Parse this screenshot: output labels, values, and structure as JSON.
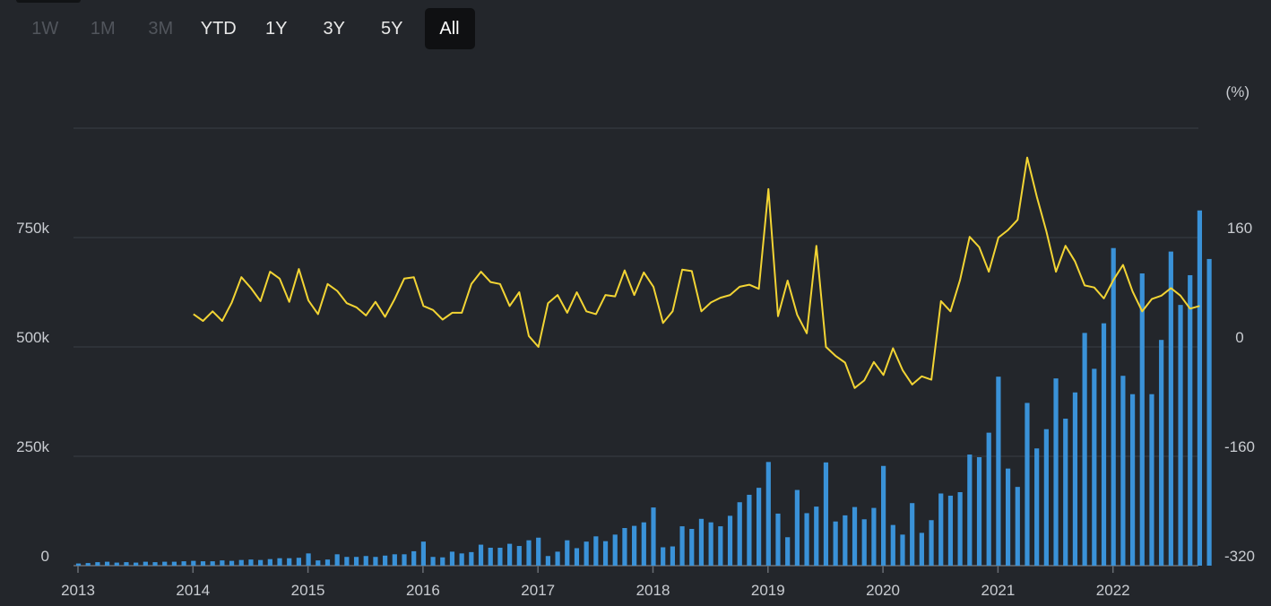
{
  "range_buttons": [
    {
      "label": "1W",
      "state": "disabled"
    },
    {
      "label": "1M",
      "state": "disabled"
    },
    {
      "label": "3M",
      "state": "disabled"
    },
    {
      "label": "YTD",
      "state": "normal"
    },
    {
      "label": "1Y",
      "state": "normal"
    },
    {
      "label": "3Y",
      "state": "normal"
    },
    {
      "label": "5Y",
      "state": "normal"
    },
    {
      "label": "All",
      "state": "active"
    }
  ],
  "chart_data": {
    "type": "bar+line",
    "title": "",
    "x_ticks": [
      "2013",
      "2014",
      "2015",
      "2016",
      "2017",
      "2018",
      "2019",
      "2020",
      "2021",
      "2022"
    ],
    "left_axis": {
      "ticks": [
        "0",
        "250k",
        "500k",
        "750k"
      ],
      "ylim": [
        0,
        1000000
      ]
    },
    "right_axis": {
      "unit_label": "(%)",
      "ticks": [
        "-320",
        "-160",
        "0",
        "160"
      ],
      "ylim": [
        -320,
        320
      ]
    },
    "colors": {
      "bars": "#3a92d8",
      "line": "#f2d434",
      "grid": "#3a3e45",
      "text": "#c9ccd1"
    },
    "start_month": "2013-01",
    "bars": [
      5000,
      6000,
      8000,
      9000,
      7000,
      8000,
      7000,
      9000,
      8000,
      9000,
      9000,
      10000,
      11000,
      10000,
      10000,
      12000,
      11000,
      13000,
      14000,
      13000,
      15000,
      17000,
      17000,
      18000,
      28000,
      12000,
      14000,
      26000,
      20000,
      20000,
      22000,
      20000,
      23000,
      26000,
      26000,
      33000,
      55000,
      20000,
      19000,
      32000,
      28000,
      31000,
      48000,
      41000,
      41000,
      50000,
      45000,
      58000,
      64000,
      22000,
      32000,
      58000,
      40000,
      55000,
      67000,
      56000,
      71000,
      86000,
      91000,
      99000,
      133000,
      42000,
      44000,
      90000,
      84000,
      107000,
      99000,
      90000,
      114000,
      145000,
      162000,
      178000,
      237000,
      119000,
      65000,
      173000,
      120000,
      135000,
      236000,
      101000,
      115000,
      134000,
      106000,
      132000,
      228000,
      93000,
      71000,
      143000,
      75000,
      104000,
      165000,
      160000,
      168000,
      254000,
      248000,
      304000,
      432000,
      222000,
      180000,
      372000,
      268000,
      312000,
      428000,
      336000,
      396000,
      532000,
      450000,
      554000,
      726000,
      434000,
      392000,
      668000,
      392000,
      516000,
      718000,
      596000,
      664000,
      812000,
      701000
    ],
    "line_start_month": "2014-01",
    "line": [
      48,
      38,
      52,
      38,
      65,
      102,
      86,
      67,
      110,
      100,
      66,
      114,
      68,
      48,
      92,
      82,
      64,
      58,
      46,
      66,
      44,
      70,
      100,
      102,
      60,
      54,
      40,
      50,
      50,
      92,
      110,
      95,
      92,
      60,
      80,
      16,
      0,
      64,
      76,
      50,
      80,
      52,
      48,
      76,
      74,
      112,
      76,
      109,
      88,
      35,
      52,
      113,
      111,
      52,
      65,
      72,
      76,
      88,
      91,
      85,
      231,
      45,
      97,
      47,
      20,
      148,
      0,
      -13,
      -23,
      -60,
      -49,
      -22,
      -41,
      -2,
      -34,
      -55,
      -43,
      -48,
      67,
      52,
      98,
      161,
      146,
      110,
      160,
      171,
      186,
      277,
      220,
      169,
      110,
      148,
      125,
      90,
      87,
      71,
      98,
      120,
      81,
      52,
      70,
      75,
      86,
      75,
      56,
      60
    ]
  }
}
